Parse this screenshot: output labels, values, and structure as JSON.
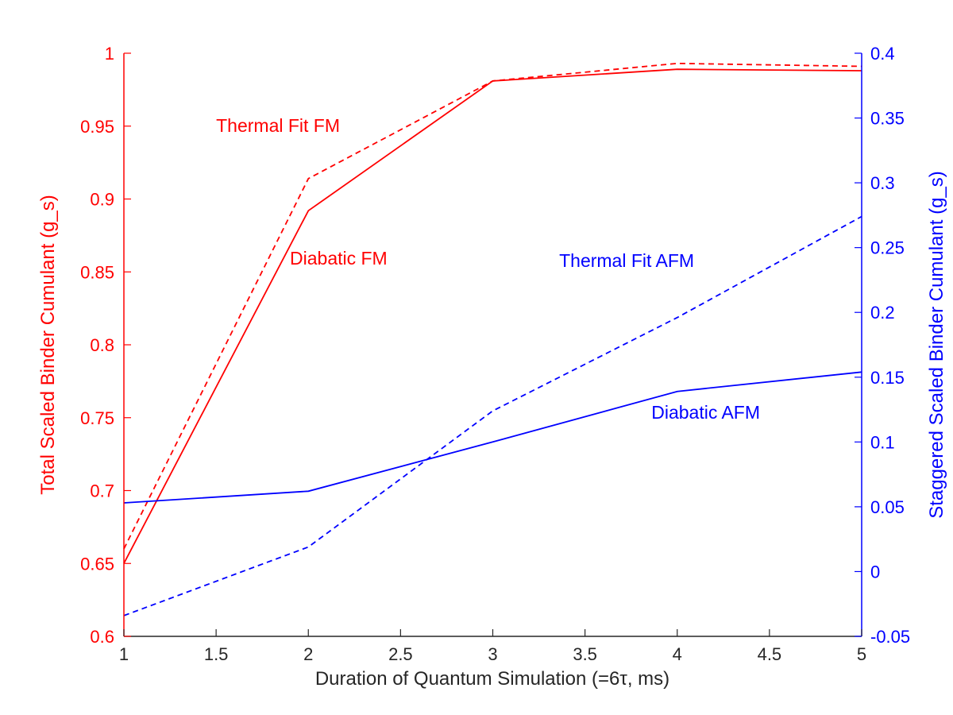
{
  "chart_data": {
    "type": "line",
    "xlabel": "Duration of Quantum Simulation (=6τ, ms)",
    "ylabel_left": "Total Scaled Binder Cumulant (g_s)",
    "ylabel_right": "Staggered Scaled Binder Cumulant (g_s)",
    "xlim": [
      1,
      5
    ],
    "ylim_left": [
      0.6,
      1.0
    ],
    "ylim_right": [
      -0.05,
      0.4
    ],
    "x_ticks": [
      "1",
      "1.5",
      "2",
      "2.5",
      "3",
      "3.5",
      "4",
      "4.5",
      "5"
    ],
    "y_left_ticks": [
      "0.6",
      "0.65",
      "0.7",
      "0.75",
      "0.8",
      "0.85",
      "0.9",
      "0.95",
      "1"
    ],
    "y_right_ticks": [
      "-0.05",
      "0",
      "0.05",
      "0.1",
      "0.15",
      "0.2",
      "0.25",
      "0.3",
      "0.35",
      "0.4"
    ],
    "grid": false,
    "colors": {
      "fm": "#ff0000",
      "afm": "#0000ff",
      "axis": "#262626"
    },
    "series": [
      {
        "name": "Diabatic FM",
        "axis": "left",
        "style": "solid",
        "color": "#ff0000",
        "x": [
          1,
          2,
          3,
          4,
          5
        ],
        "y": [
          0.65,
          0.892,
          0.981,
          0.989,
          0.988
        ]
      },
      {
        "name": "Thermal Fit FM",
        "axis": "left",
        "style": "dashed",
        "color": "#ff0000",
        "x": [
          1,
          2,
          3,
          4,
          5
        ],
        "y": [
          0.66,
          0.914,
          0.981,
          0.993,
          0.991
        ]
      },
      {
        "name": "Diabatic AFM",
        "axis": "right",
        "style": "solid",
        "color": "#0000ff",
        "x": [
          1,
          2,
          3,
          4,
          5
        ],
        "y": [
          0.053,
          0.062,
          0.1,
          0.139,
          0.154
        ]
      },
      {
        "name": "Thermal Fit AFM",
        "axis": "right",
        "style": "dashed",
        "color": "#0000ff",
        "x": [
          1,
          2,
          3,
          4,
          5
        ],
        "y": [
          -0.034,
          0.019,
          0.124,
          0.196,
          0.274
        ]
      }
    ],
    "annotations": [
      {
        "text": "Thermal Fit FM",
        "series": "Thermal Fit FM",
        "x": 1.5,
        "axis": "left",
        "y": 0.946
      },
      {
        "text": "Diabatic FM",
        "series": "Diabatic FM",
        "x": 1.9,
        "axis": "left",
        "y": 0.855
      },
      {
        "text": "Thermal Fit AFM",
        "series": "Thermal Fit AFM",
        "x": 3.36,
        "axis": "right",
        "y": 0.235
      },
      {
        "text": "Diabatic AFM",
        "series": "Diabatic AFM",
        "x": 3.86,
        "axis": "right",
        "y": 0.118
      }
    ]
  }
}
